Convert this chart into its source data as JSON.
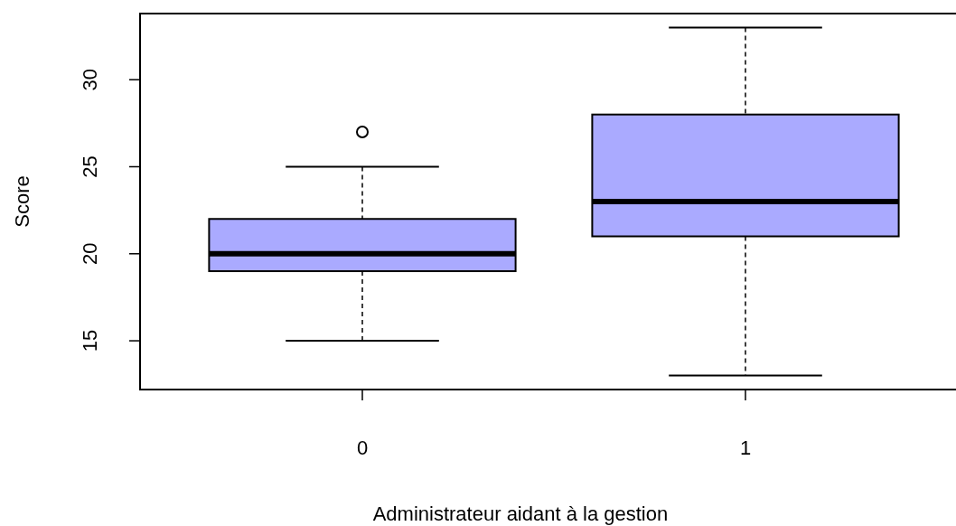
{
  "chart_data": {
    "type": "box",
    "xlabel": "Administrateur aidant à la gestion",
    "ylabel": "Score",
    "categories": [
      "0",
      "1"
    ],
    "colors": [
      "#aaaaff",
      "#aaaaff"
    ],
    "boxes": [
      {
        "low": 15,
        "q1": 19,
        "median": 20,
        "q3": 22,
        "high": 25,
        "outliers": [
          27
        ]
      },
      {
        "low": 13,
        "q1": 21,
        "median": 23,
        "q3": 28,
        "high": 33
      }
    ],
    "ylim": [
      12.2,
      33.8
    ],
    "yticks": [
      15,
      20,
      25,
      30
    ],
    "marker": "circle"
  }
}
